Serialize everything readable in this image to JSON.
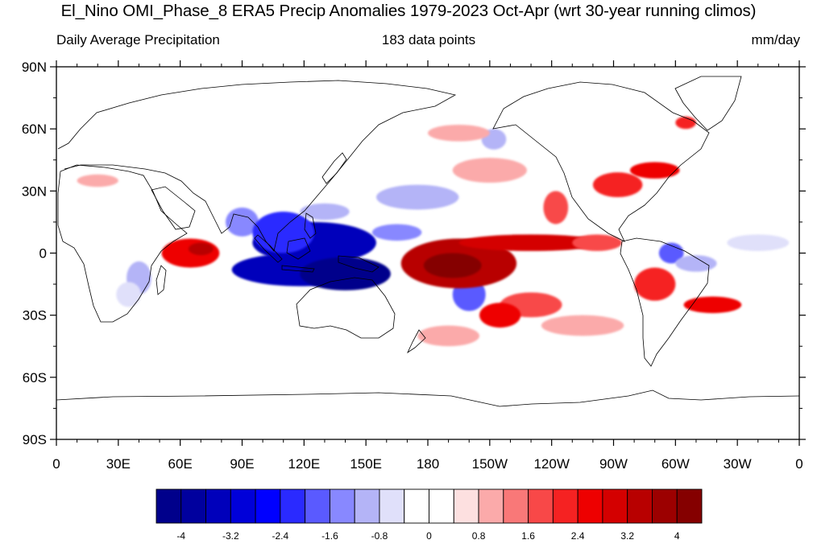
{
  "title": "El_Nino OMI_Phase_8 ERA5 Precip Anomalies 1979-2023 Oct-Apr (wrt 30-year running climos)",
  "subtitle_left": "Daily Average Precipitation",
  "subtitle_center": "183 data points",
  "subtitle_right": "mm/day",
  "y_ticks": [
    {
      "lat": 90,
      "label": "90N"
    },
    {
      "lat": 60,
      "label": "60N"
    },
    {
      "lat": 30,
      "label": "30N"
    },
    {
      "lat": 0,
      "label": "0"
    },
    {
      "lat": -30,
      "label": "30S"
    },
    {
      "lat": -60,
      "label": "60S"
    },
    {
      "lat": -90,
      "label": "90S"
    }
  ],
  "x_ticks": [
    {
      "lon": 0,
      "label": "0"
    },
    {
      "lon": 30,
      "label": "30E"
    },
    {
      "lon": 60,
      "label": "60E"
    },
    {
      "lon": 90,
      "label": "90E"
    },
    {
      "lon": 120,
      "label": "120E"
    },
    {
      "lon": 150,
      "label": "150E"
    },
    {
      "lon": 180,
      "label": "180"
    },
    {
      "lon": 210,
      "label": "150W"
    },
    {
      "lon": 240,
      "label": "120W"
    },
    {
      "lon": 270,
      "label": "90W"
    },
    {
      "lon": 300,
      "label": "60W"
    },
    {
      "lon": 330,
      "label": "30W"
    },
    {
      "lon": 360,
      "label": "0"
    }
  ],
  "colorbar": {
    "colors": [
      "#00008b",
      "#00009e",
      "#0000bb",
      "#0000d9",
      "#0000ff",
      "#2a2aff",
      "#5a5aff",
      "#8888ff",
      "#b4b4f7",
      "#e0e0fa",
      "#ffffff",
      "#ffffff",
      "#fde0e0",
      "#fbaaaa",
      "#f97878",
      "#f84848",
      "#f52222",
      "#ee0000",
      "#d40000",
      "#b80000",
      "#9c0000",
      "#850000"
    ],
    "labels": [
      "-4",
      "-3.2",
      "-2.4",
      "-1.6",
      "-0.8",
      "0",
      "0.8",
      "1.6",
      "2.4",
      "3.2",
      "4"
    ]
  },
  "anomaly_regions": [
    {
      "lon": 65,
      "lat": 0,
      "rx": 14,
      "ry": 7,
      "value": 2.6
    },
    {
      "lon": 70,
      "lat": 2,
      "rx": 6,
      "ry": 3,
      "value": 3.5
    },
    {
      "lon": 40,
      "lat": -12,
      "rx": 6,
      "ry": 8,
      "value": -1.2
    },
    {
      "lon": 35,
      "lat": -20,
      "rx": 6,
      "ry": 6,
      "value": -0.8
    },
    {
      "lon": 90,
      "lat": 15,
      "rx": 8,
      "ry": 7,
      "value": -1.6
    },
    {
      "lon": 125,
      "lat": 5,
      "rx": 30,
      "ry": 10,
      "value": -3.6
    },
    {
      "lon": 118,
      "lat": -8,
      "rx": 33,
      "ry": 8,
      "value": -3.4
    },
    {
      "lon": 140,
      "lat": -10,
      "rx": 22,
      "ry": 8,
      "value": -4.2
    },
    {
      "lon": 110,
      "lat": 10,
      "rx": 15,
      "ry": 10,
      "value": -2.4
    },
    {
      "lon": 130,
      "lat": 20,
      "rx": 12,
      "ry": 4,
      "value": -1.0
    },
    {
      "lon": 175,
      "lat": 27,
      "rx": 20,
      "ry": 6,
      "value": -1.2
    },
    {
      "lon": 200,
      "lat": -20,
      "rx": 8,
      "ry": 8,
      "value": -1.8
    },
    {
      "lon": 195,
      "lat": -5,
      "rx": 28,
      "ry": 12,
      "value": 3.2
    },
    {
      "lon": 192,
      "lat": -6,
      "rx": 14,
      "ry": 6,
      "value": 4.3
    },
    {
      "lon": 230,
      "lat": 5,
      "rx": 35,
      "ry": 4,
      "value": 2.8
    },
    {
      "lon": 262,
      "lat": 5,
      "rx": 12,
      "ry": 4,
      "value": 1.6
    },
    {
      "lon": 230,
      "lat": -25,
      "rx": 15,
      "ry": 6,
      "value": 1.8
    },
    {
      "lon": 215,
      "lat": -30,
      "rx": 10,
      "ry": 6,
      "value": 2.6
    },
    {
      "lon": 290,
      "lat": -15,
      "rx": 10,
      "ry": 8,
      "value": 2.2
    },
    {
      "lon": 318,
      "lat": -25,
      "rx": 14,
      "ry": 4,
      "value": 2.6
    },
    {
      "lon": 298,
      "lat": 0,
      "rx": 6,
      "ry": 5,
      "value": -2.0
    },
    {
      "lon": 310,
      "lat": -5,
      "rx": 10,
      "ry": 4,
      "value": -1.2
    },
    {
      "lon": 272,
      "lat": 33,
      "rx": 12,
      "ry": 6,
      "value": 2.0
    },
    {
      "lon": 290,
      "lat": 40,
      "rx": 12,
      "ry": 4,
      "value": 2.4
    },
    {
      "lon": 242,
      "lat": 22,
      "rx": 6,
      "ry": 8,
      "value": 1.6
    },
    {
      "lon": 212,
      "lat": 55,
      "rx": 6,
      "ry": 5,
      "value": -1.0
    },
    {
      "lon": 195,
      "lat": 58,
      "rx": 15,
      "ry": 4,
      "value": 1.0
    },
    {
      "lon": 305,
      "lat": 63,
      "rx": 5,
      "ry": 3,
      "value": 2.0
    },
    {
      "lon": 210,
      "lat": 40,
      "rx": 18,
      "ry": 6,
      "value": 1.0
    },
    {
      "lon": 165,
      "lat": 10,
      "rx": 12,
      "ry": 4,
      "value": -1.6
    },
    {
      "lon": 20,
      "lat": 35,
      "rx": 10,
      "ry": 3,
      "value": 0.8
    },
    {
      "lon": 190,
      "lat": -40,
      "rx": 15,
      "ry": 5,
      "value": 0.8
    },
    {
      "lon": 255,
      "lat": -35,
      "rx": 20,
      "ry": 5,
      "value": 0.9
    },
    {
      "lon": 340,
      "lat": 5,
      "rx": 15,
      "ry": 4,
      "value": -0.8
    }
  ]
}
